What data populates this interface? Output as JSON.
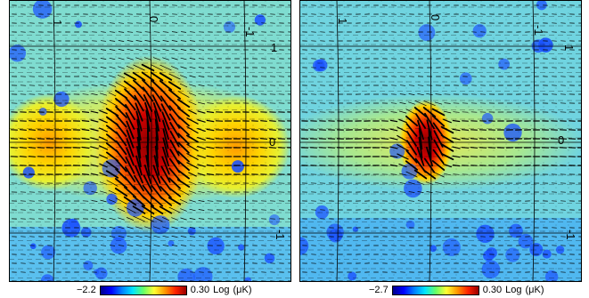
{
  "panels": [
    {
      "id": "left",
      "grid_labels": {
        "top_left": "1",
        "top_mid": "0",
        "top_right": "-1",
        "right_upper": "1",
        "right_mid": "0",
        "right_lower": "-1"
      },
      "colorbar": {
        "min": "−2.2",
        "max": "0.30",
        "unit": "Log",
        "unit2": "(μK)"
      },
      "lobes": "strong central core with two side lobes"
    },
    {
      "id": "right",
      "grid_labels": {
        "top_left": "1",
        "top_mid": "0",
        "top_right": "-1",
        "right_upper": "1",
        "right_mid": "0",
        "right_lower": "-1"
      },
      "colorbar": {
        "min": "−2.7",
        "max": "0.30",
        "unit": "Log",
        "unit2": "(μK)"
      },
      "lobes": "compact central core"
    }
  ],
  "colors": {
    "background_map": "#7fe0c8",
    "core": "#b00000",
    "warm": "#ffd800",
    "cool": "#00a0e8",
    "vector": "#000000",
    "grid": "#000000"
  }
}
